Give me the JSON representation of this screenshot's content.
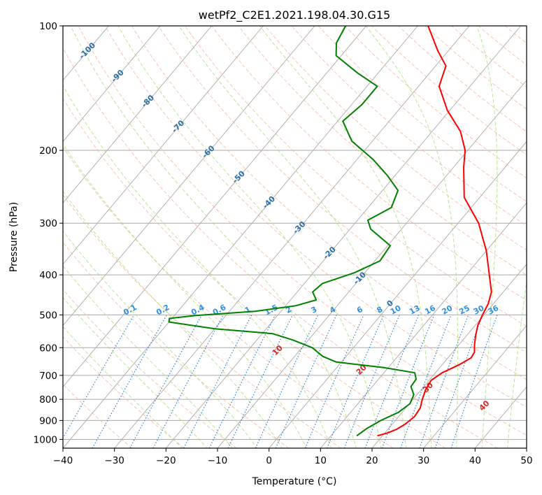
{
  "chart_data": {
    "type": "skew-t",
    "title": "wetPf2_C2E1.2021.198.04.30.G15",
    "xlabel": "Temperature (°C)",
    "ylabel": "Pressure (hPa)",
    "xlim": [
      -40,
      50
    ],
    "ylim": [
      1050,
      100
    ],
    "y_scale": "log",
    "x_ticks": [
      "−40",
      "−30",
      "−20",
      "−10",
      "0",
      "10",
      "20",
      "30",
      "40",
      "50"
    ],
    "x_tick_values": [
      -40,
      -30,
      -20,
      -10,
      0,
      10,
      20,
      30,
      40,
      50
    ],
    "y_ticks": [
      "100",
      "200",
      "300",
      "400",
      "500",
      "600",
      "700",
      "800",
      "900",
      "1000"
    ],
    "y_tick_values": [
      100,
      200,
      300,
      400,
      500,
      600,
      700,
      800,
      900,
      1000
    ],
    "grid": true,
    "colors": {
      "temperature": "#ff0000",
      "dewpoint": "#008000",
      "isotherm": "#aaaaaa",
      "dry_adiabat": "#f4a582",
      "moist_adiabat": "#a6d96a",
      "mixing_ratio": "#1f78d4",
      "isotherm_label": "#2a6fa8",
      "mixing_label": "#3090e0",
      "moist_label": "#d62728"
    },
    "series": [
      {
        "kind": "temperature",
        "points": [
          {
            "p": 980,
            "t": 19
          },
          {
            "p": 965,
            "t": 20.5
          },
          {
            "p": 945,
            "t": 21.7
          },
          {
            "p": 920,
            "t": 22.5
          },
          {
            "p": 880,
            "t": 23.1
          },
          {
            "p": 840,
            "t": 22.8
          },
          {
            "p": 800,
            "t": 21.8
          },
          {
            "p": 760,
            "t": 20.9
          },
          {
            "p": 720,
            "t": 20.4
          },
          {
            "p": 690,
            "t": 21.3
          },
          {
            "p": 660,
            "t": 23.3
          },
          {
            "p": 635,
            "t": 24.5
          },
          {
            "p": 615,
            "t": 24.2
          },
          {
            "p": 590,
            "t": 23
          },
          {
            "p": 560,
            "t": 21.7
          },
          {
            "p": 530,
            "t": 20.5
          },
          {
            "p": 500,
            "t": 19.7
          },
          {
            "p": 470,
            "t": 19
          },
          {
            "p": 440,
            "t": 17.7
          },
          {
            "p": 400,
            "t": 14.5
          },
          {
            "p": 350,
            "t": 10
          },
          {
            "p": 300,
            "t": 4
          },
          {
            "p": 260,
            "t": -3
          },
          {
            "p": 220,
            "t": -8
          },
          {
            "p": 200,
            "t": -10.5
          },
          {
            "p": 180,
            "t": -14.5
          },
          {
            "p": 160,
            "t": -20.5
          },
          {
            "p": 140,
            "t": -26
          },
          {
            "p": 125,
            "t": -28
          },
          {
            "p": 115,
            "t": -32
          },
          {
            "p": 100,
            "t": -38
          }
        ]
      },
      {
        "kind": "dewpoint",
        "points": [
          {
            "p": 980,
            "t": 15
          },
          {
            "p": 940,
            "t": 15.8
          },
          {
            "p": 900,
            "t": 17.2
          },
          {
            "p": 860,
            "t": 19.3
          },
          {
            "p": 820,
            "t": 20.1
          },
          {
            "p": 780,
            "t": 19.4
          },
          {
            "p": 745,
            "t": 17.5
          },
          {
            "p": 715,
            "t": 17.3
          },
          {
            "p": 690,
            "t": 16
          },
          {
            "p": 670,
            "t": 9
          },
          {
            "p": 650,
            "t": -1
          },
          {
            "p": 630,
            "t": -4.5
          },
          {
            "p": 600,
            "t": -8
          },
          {
            "p": 575,
            "t": -13
          },
          {
            "p": 555,
            "t": -18
          },
          {
            "p": 540,
            "t": -30
          },
          {
            "p": 520,
            "t": -40
          },
          {
            "p": 510,
            "t": -40.5
          },
          {
            "p": 502,
            "t": -36
          },
          {
            "p": 490,
            "t": -25
          },
          {
            "p": 475,
            "t": -18
          },
          {
            "p": 460,
            "t": -15
          },
          {
            "p": 440,
            "t": -17
          },
          {
            "p": 420,
            "t": -16.5
          },
          {
            "p": 395,
            "t": -12
          },
          {
            "p": 370,
            "t": -9
          },
          {
            "p": 340,
            "t": -9.5
          },
          {
            "p": 310,
            "t": -16
          },
          {
            "p": 295,
            "t": -18
          },
          {
            "p": 275,
            "t": -15.5
          },
          {
            "p": 250,
            "t": -17
          },
          {
            "p": 230,
            "t": -21.5
          },
          {
            "p": 210,
            "t": -27
          },
          {
            "p": 190,
            "t": -34
          },
          {
            "p": 170,
            "t": -39
          },
          {
            "p": 155,
            "t": -38
          },
          {
            "p": 140,
            "t": -38
          },
          {
            "p": 130,
            "t": -44
          },
          {
            "p": 118,
            "t": -51
          },
          {
            "p": 110,
            "t": -53
          },
          {
            "p": 100,
            "t": -54
          }
        ]
      }
    ],
    "isotherm_labels": [
      {
        "text": "-100",
        "t": -100
      },
      {
        "text": "-90",
        "t": -90
      },
      {
        "text": "-80",
        "t": -80
      },
      {
        "text": "-70",
        "t": -70
      },
      {
        "text": "-60",
        "t": -60
      },
      {
        "text": "-50",
        "t": -50
      },
      {
        "text": "-40",
        "t": -40
      },
      {
        "text": "-30",
        "t": -30
      },
      {
        "text": "-20",
        "t": -20
      },
      {
        "text": "-10",
        "t": -10
      },
      {
        "text": "0",
        "t": 0
      }
    ],
    "mixing_ratios": [
      {
        "text": "0.1",
        "w": 0.1
      },
      {
        "text": "0.2",
        "w": 0.2
      },
      {
        "text": "0.4",
        "w": 0.4
      },
      {
        "text": "0.6",
        "w": 0.6
      },
      {
        "text": "1",
        "w": 1
      },
      {
        "text": "1.5",
        "w": 1.5
      },
      {
        "text": "2",
        "w": 2
      },
      {
        "text": "3",
        "w": 3
      },
      {
        "text": "4",
        "w": 4
      },
      {
        "text": "6",
        "w": 6
      },
      {
        "text": "8",
        "w": 8
      },
      {
        "text": "10",
        "w": 10
      },
      {
        "text": "13",
        "w": 13
      },
      {
        "text": "16",
        "w": 16
      },
      {
        "text": "20",
        "w": 20
      },
      {
        "text": "25",
        "w": 25
      },
      {
        "text": "30",
        "w": 30
      },
      {
        "text": "36",
        "w": 36
      }
    ],
    "moist_adiabat_labels": [
      {
        "text": "10",
        "theta": 10
      },
      {
        "text": "20",
        "theta": 20
      },
      {
        "text": "30",
        "theta": 30
      },
      {
        "text": "40",
        "theta": 40
      }
    ]
  }
}
